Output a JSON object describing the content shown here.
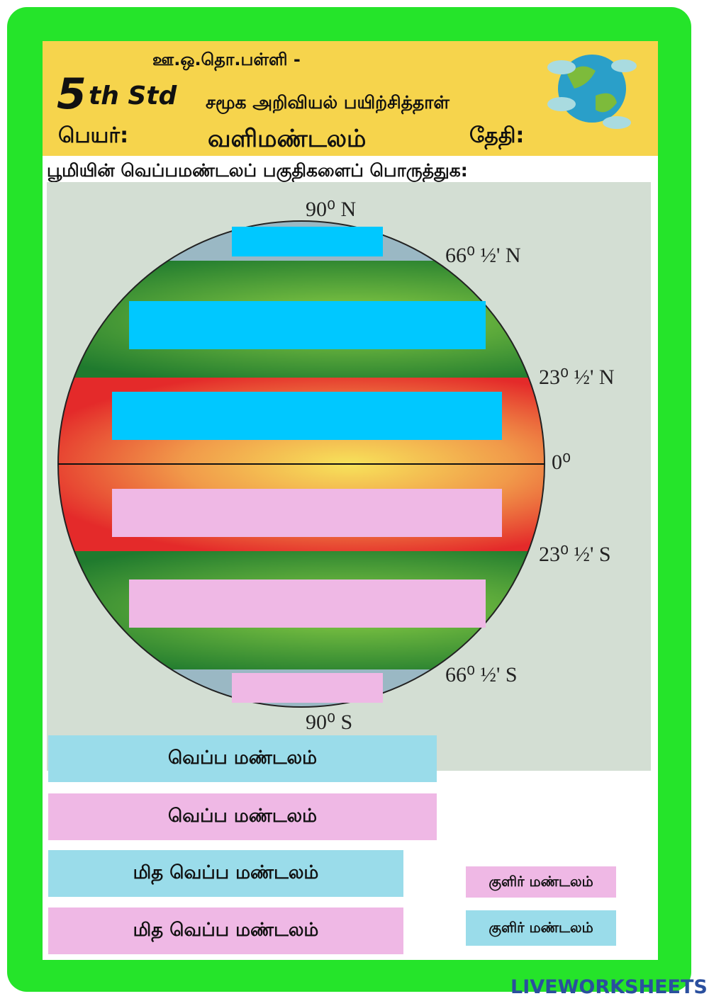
{
  "header": {
    "school": "ஊ.ஒ.தொ.பள்ளி -",
    "grade_number": "5",
    "grade_suffix": "th Std",
    "subject": "சமூக அறிவியல் பயிற்சித்தாள்",
    "name_label": "பெயர்:",
    "topic": "வளிமண்டலம்",
    "date_label": "தேதி:"
  },
  "instruction": "பூமியின் வெப்பமண்டலப் பகுதிகளைப் பொருத்துக:",
  "diagram": {
    "latitudes": [
      "90⁰ N",
      "66⁰ ½' N",
      "23⁰ ½' N",
      "0⁰",
      "23⁰ ½' S",
      "66⁰ ½' S",
      "90⁰ S"
    ]
  },
  "options": [
    "வெப்ப மண்டலம்",
    "வெப்ப மண்டலம்",
    "மித வெப்ப மண்டலம்",
    "மித வெப்ப மண்டலம்",
    "குளிர் மண்டலம்",
    "குளிர் மண்டலம்"
  ],
  "footer": {
    "brand": "LIVEWORKSHEETS"
  }
}
